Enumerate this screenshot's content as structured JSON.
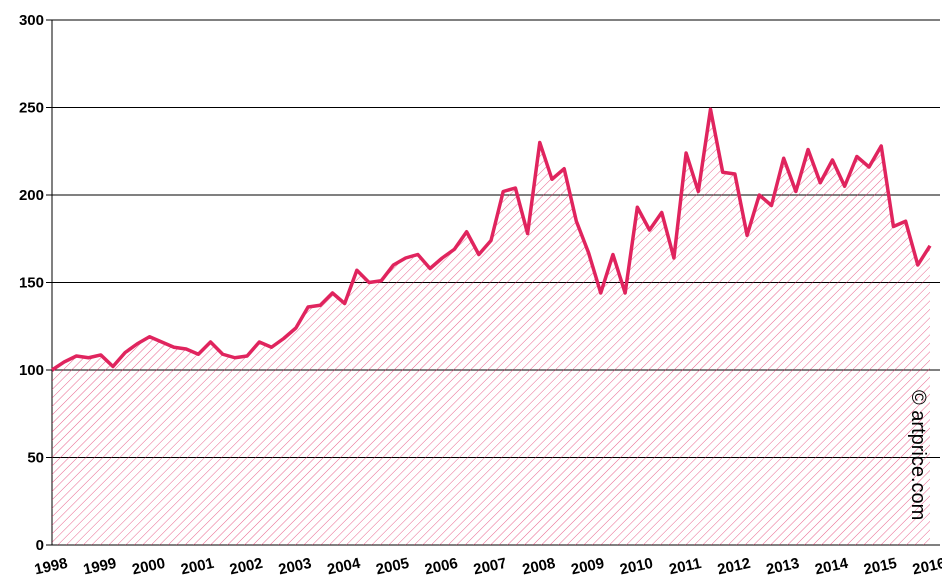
{
  "chart_data": {
    "type": "area",
    "annotation": "© artprice.com",
    "categories": [
      "1998",
      null,
      null,
      null,
      "1999",
      null,
      null,
      null,
      "2000",
      null,
      null,
      null,
      "2001",
      null,
      null,
      null,
      "2002",
      null,
      null,
      null,
      "2003",
      null,
      null,
      null,
      "2004",
      null,
      null,
      null,
      "2005",
      null,
      null,
      null,
      "2006",
      null,
      null,
      null,
      "2007",
      null,
      null,
      null,
      "2008",
      null,
      null,
      null,
      "2009",
      null,
      null,
      null,
      "2010",
      null,
      null,
      null,
      "2011",
      null,
      null,
      null,
      "2012",
      null,
      null,
      null,
      "2013",
      null,
      null,
      null,
      "2014",
      null,
      null,
      null,
      "2015",
      null,
      null,
      null,
      "2016"
    ],
    "values": [
      100,
      104.6,
      108,
      107,
      108.6,
      102,
      110,
      115,
      119,
      116,
      113,
      112,
      109,
      116,
      109,
      107,
      108,
      116,
      113,
      118,
      124,
      136,
      137,
      144,
      138,
      157,
      150,
      151,
      160,
      164,
      166,
      158,
      164,
      169,
      179,
      166,
      174,
      202,
      204,
      178,
      230,
      209,
      215,
      185,
      167,
      144,
      166,
      144,
      193,
      180,
      190,
      164,
      224,
      202,
      249,
      213,
      212,
      177,
      200,
      194,
      221,
      202,
      226,
      207,
      220,
      205,
      222,
      216,
      228,
      182,
      185,
      160,
      171
    ],
    "color": "#e0245e",
    "ylim": [
      0,
      300
    ],
    "yticks": [
      0,
      50,
      100,
      150,
      200,
      250,
      300
    ],
    "grid": true
  }
}
